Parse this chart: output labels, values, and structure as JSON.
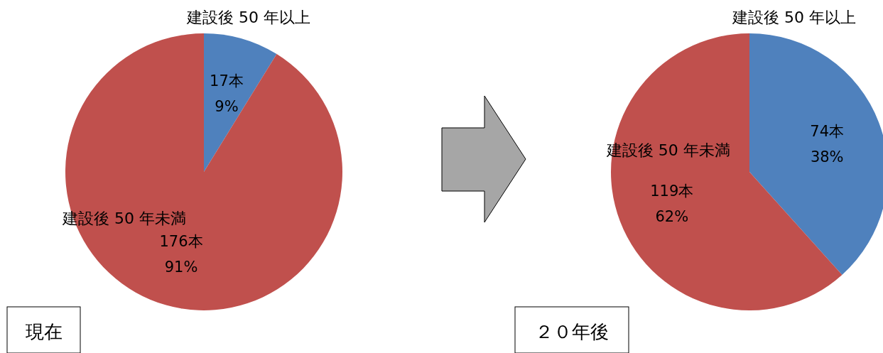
{
  "chart_data": [
    {
      "type": "pie",
      "title": "現在",
      "categories": [
        "建設後 50 年以上",
        "建設後 50 年未満"
      ],
      "values": [
        17,
        176
      ],
      "colors": [
        "#4f81bd",
        "#c0504d"
      ],
      "value_labels": [
        "17本\n9%",
        "176本\n91%"
      ]
    },
    {
      "type": "pie",
      "title": "２０年後",
      "categories": [
        "建設後 50 年以上",
        "建設後 50 年未満"
      ],
      "values": [
        74,
        119
      ],
      "colors": [
        "#4f81bd",
        "#c0504d"
      ],
      "value_labels": [
        "74本\n38%",
        "119本\n62%"
      ]
    }
  ]
}
